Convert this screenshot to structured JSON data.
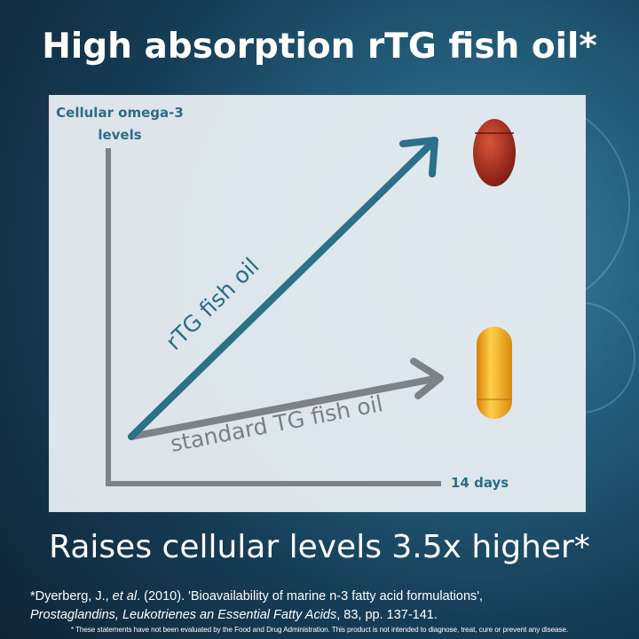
{
  "title": "High absorption rTG fish oil*",
  "subtitle": "Raises cellular levels 3.5x higher*",
  "citation": {
    "line1_prefix": "*Dyerberg, J., ",
    "line1_etal": "et al",
    "line1_suffix": ". (2010). 'Bioavailability of marine n-3 fatty acid formulations',",
    "line2_journal": "Prostaglandins, Leukotrienes an Essential Fatty Acids",
    "line2_suffix": ", 83, pp. 137-141."
  },
  "disclaimer": "* These statements have not been evaluated by the Food and Drug Administration. This product is not intended to diagnose, treat, cure or prevent any disease.",
  "chart_data": {
    "type": "line",
    "title": "",
    "ylabel": "Cellular omega-3 levels",
    "xlabel": "14 days",
    "grid": false,
    "series": [
      {
        "name": "rTG fish oil",
        "color": "#2a7189"
      },
      {
        "name": "standard TG fish oil",
        "color": "#7d8287"
      }
    ]
  },
  "colors": {
    "accent": "#2a6d88",
    "axis": "#7d8287",
    "red_capsule": "#a8281a",
    "yellow_capsule": "#f2a318"
  }
}
